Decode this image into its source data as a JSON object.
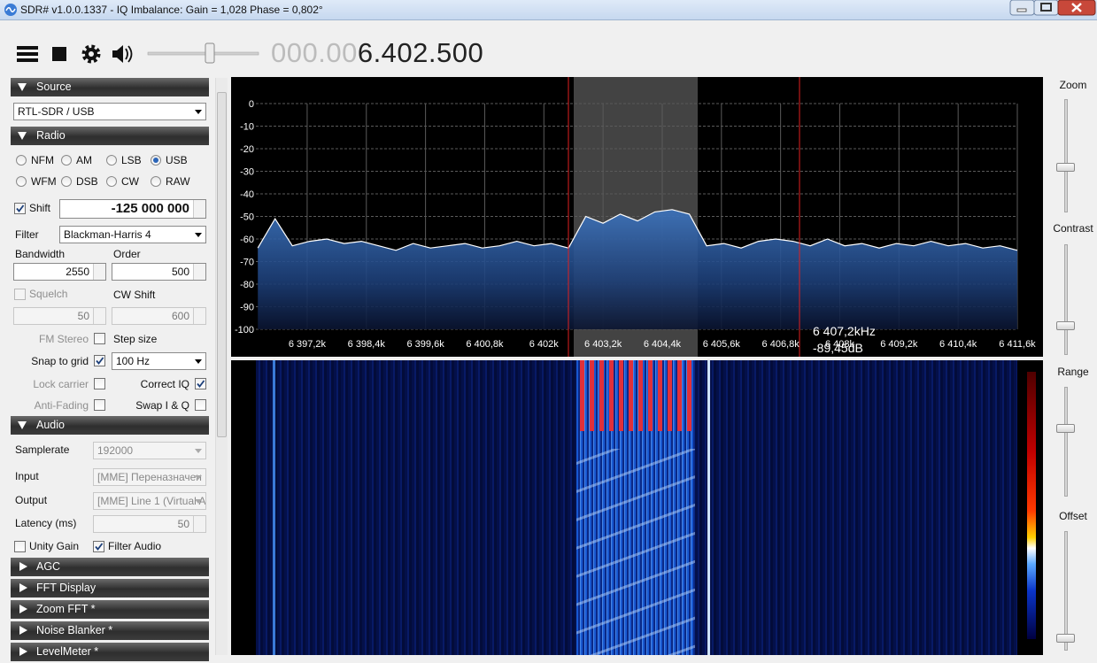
{
  "window": {
    "title": "SDR# v1.0.0.1337 - IQ Imbalance: Gain = 1,028 Phase = 0,802°"
  },
  "toolbar": {
    "frequency_dim": "000.00",
    "frequency": "6.402.500"
  },
  "source": {
    "header": "Source",
    "device": "RTL-SDR / USB"
  },
  "radio": {
    "header": "Radio",
    "modes": [
      {
        "label": "NFM",
        "checked": false
      },
      {
        "label": "AM",
        "checked": false
      },
      {
        "label": "LSB",
        "checked": false
      },
      {
        "label": "USB",
        "checked": true
      },
      {
        "label": "WFM",
        "checked": false
      },
      {
        "label": "DSB",
        "checked": false
      },
      {
        "label": "CW",
        "checked": false
      },
      {
        "label": "RAW",
        "checked": false
      }
    ],
    "shift": {
      "label": "Shift",
      "checked": true,
      "value": "-125 000 000"
    },
    "filter": {
      "label": "Filter",
      "value": "Blackman-Harris 4"
    },
    "bandwidth": {
      "label": "Bandwidth",
      "value": "2550"
    },
    "order": {
      "label": "Order",
      "value": "500"
    },
    "squelch": {
      "label": "Squelch",
      "checked": false,
      "enabled": false,
      "value": "50"
    },
    "cw_shift": {
      "label": "CW Shift",
      "value": "600"
    },
    "fm_stereo": {
      "label": "FM Stereo",
      "checked": false,
      "enabled": false
    },
    "step_size": {
      "label": "Step size",
      "value": "100 Hz"
    },
    "snap_to_grid": {
      "label": "Snap to grid",
      "checked": true,
      "enabled": true
    },
    "lock_carrier": {
      "label": "Lock carrier",
      "checked": false,
      "enabled": false
    },
    "correct_iq": {
      "label": "Correct IQ",
      "checked": true,
      "enabled": true
    },
    "anti_fading": {
      "label": "Anti-Fading",
      "checked": false,
      "enabled": false
    },
    "swap_iq": {
      "label": "Swap I & Q",
      "checked": false,
      "enabled": true
    }
  },
  "audio": {
    "header": "Audio",
    "samplerate": {
      "label": "Samplerate",
      "value": "192000"
    },
    "input": {
      "label": "Input",
      "value": "[MME] Переназначен"
    },
    "output": {
      "label": "Output",
      "value": "[MME] Line 1 (Virtual A"
    },
    "latency": {
      "label": "Latency (ms)",
      "value": "50"
    },
    "unity_gain": {
      "label": "Unity Gain",
      "checked": false
    },
    "filter_audio": {
      "label": "Filter Audio",
      "checked": true
    }
  },
  "collapsed_sections": [
    "AGC",
    "FFT Display",
    "Zoom FFT *",
    "Noise Blanker *",
    "LevelMeter *"
  ],
  "right_panel": {
    "zoom": "Zoom",
    "contrast": "Contrast",
    "range": "Range",
    "offset": "Offset"
  },
  "chart_data": {
    "type": "line",
    "color": "#ffffff",
    "grid": true,
    "x": [
      6396.2,
      6396.55,
      6396.9,
      6397.25,
      6397.6,
      6397.95,
      6398.3,
      6398.65,
      6399.0,
      6399.35,
      6399.7,
      6400.05,
      6400.4,
      6400.75,
      6401.1,
      6401.45,
      6401.8,
      6402.15,
      6402.5,
      6402.85,
      6403.2,
      6403.55,
      6403.9,
      6404.25,
      6404.6,
      6404.95,
      6405.3,
      6405.65,
      6406.0,
      6406.35,
      6406.7,
      6407.05,
      6407.4,
      6407.75,
      6408.1,
      6408.45,
      6408.8,
      6409.15,
      6409.5,
      6409.85,
      6410.2,
      6410.55,
      6410.9,
      6411.25,
      6411.6
    ],
    "values": [
      -64,
      -51,
      -63,
      -61,
      -60,
      -62,
      -61,
      -63,
      -65,
      -62,
      -64,
      -63,
      -62,
      -64,
      -63,
      -61,
      -63,
      -62,
      -64,
      -50,
      -53,
      -49,
      -52,
      -48,
      -47,
      -49,
      -63,
      -62,
      -64,
      -61,
      -60,
      -61,
      -63,
      -60,
      -63,
      -62,
      -64,
      -62,
      -63,
      -61,
      -63,
      -62,
      -64,
      -63,
      -65
    ],
    "xlim": [
      6396.16,
      6411.6
    ],
    "ylim": [
      -100,
      0
    ],
    "yticks": [
      0,
      -10,
      -20,
      -30,
      -40,
      -50,
      -60,
      -70,
      -80,
      -90,
      -100
    ],
    "xticks": [
      {
        "value": 6397.2,
        "label": "6 397,2k"
      },
      {
        "value": 6398.4,
        "label": "6 398,4k"
      },
      {
        "value": 6399.6,
        "label": "6 399,6k"
      },
      {
        "value": 6400.8,
        "label": "6 400,8k"
      },
      {
        "value": 6402,
        "label": "6 402k"
      },
      {
        "value": 6403.2,
        "label": "6 403,2k"
      },
      {
        "value": 6404.4,
        "label": "6 404,4k"
      },
      {
        "value": 6405.6,
        "label": "6 405,6k"
      },
      {
        "value": 6406.8,
        "label": "6 406,8k"
      },
      {
        "value": 6408,
        "label": "6 408k"
      },
      {
        "value": 6409.2,
        "label": "6 409,2k"
      },
      {
        "value": 6410.4,
        "label": "6 410,4k"
      },
      {
        "value": 6411.6,
        "label": "6 411,6k"
      }
    ],
    "cursor_frequency": "6 407,2kHz",
    "cursor_level": "-89,45dB"
  }
}
